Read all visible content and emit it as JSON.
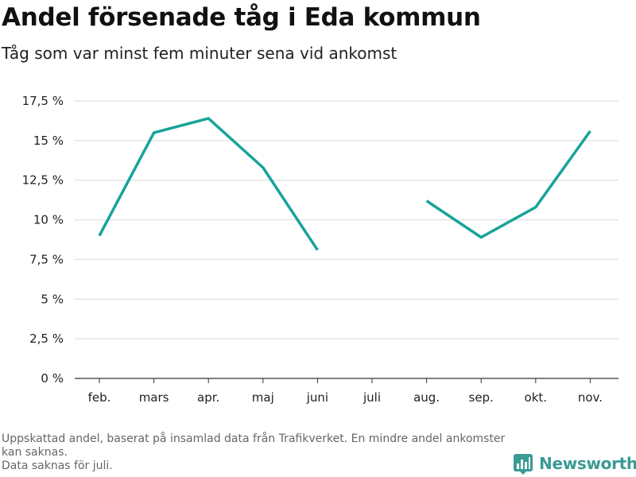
{
  "header": {
    "title": "Andel försenade tåg i Eda kommun",
    "subtitle": "Tåg som var minst fem minuter sena vid ankomst"
  },
  "footer": {
    "note_line1": "Uppskattad andel, baserat på insamlad data från Trafikverket. En mindre andel ankomster kan saknas.",
    "note_line2": "Data saknas för juli.",
    "brand": "Newsworthy",
    "brand_icon": "bar-chart-logo-icon"
  },
  "colors": {
    "line": "#17a39a",
    "grid": "#d9d9d9",
    "brand": "#3a9a94"
  },
  "chart_data": {
    "type": "line",
    "title": "Andel försenade tåg i Eda kommun",
    "subtitle": "Tåg som var minst fem minuter sena vid ankomst",
    "categories": [
      "feb.",
      "mars",
      "apr.",
      "maj",
      "juni",
      "juli",
      "aug.",
      "sep.",
      "okt.",
      "nov."
    ],
    "series": [
      {
        "values": [
          9.0,
          15.5,
          16.4,
          13.3,
          8.1,
          null,
          11.2,
          8.9,
          10.8,
          15.6
        ]
      }
    ],
    "yticks": [
      0,
      2.5,
      5,
      7.5,
      10,
      12.5,
      15,
      17.5
    ],
    "ytick_labels": [
      "0 %",
      "2,5 %",
      "5 %",
      "7,5 %",
      "10 %",
      "12,5 %",
      "15 %",
      "17,5 %"
    ],
    "ylim": [
      0,
      17.5
    ],
    "xlabel": "",
    "ylabel": "",
    "grid": true,
    "legend": "none"
  }
}
